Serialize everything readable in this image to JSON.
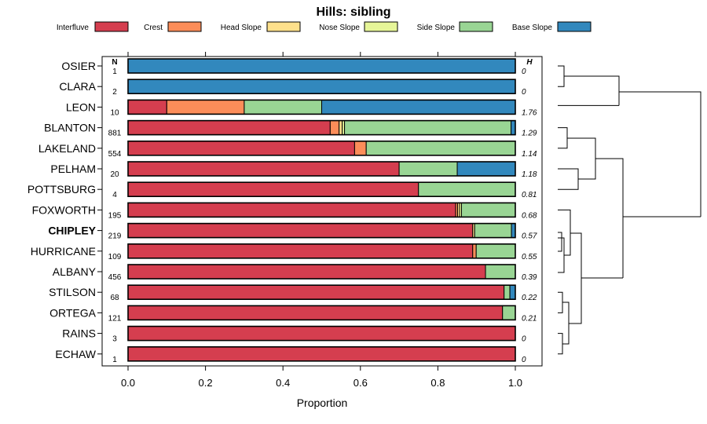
{
  "chart_data": {
    "type": "bar",
    "orientation": "horizontal",
    "stacked": true,
    "title": "Hills: sibling",
    "xlabel": "Proportion",
    "ylabel": "",
    "xlim": [
      0,
      1
    ],
    "xticks": [
      "0.0",
      "0.2",
      "0.4",
      "0.6",
      "0.8",
      "1.0"
    ],
    "xtick_values": [
      0,
      0.2,
      0.4,
      0.6,
      0.8,
      1.0
    ],
    "n_header": "N",
    "h_header": "H",
    "legend_position": "top",
    "series": [
      {
        "name": "Interfluve",
        "color": "#d53e4f"
      },
      {
        "name": "Crest",
        "color": "#fc8d59"
      },
      {
        "name": "Head Slope",
        "color": "#fee08b"
      },
      {
        "name": "Nose Slope",
        "color": "#e6f598"
      },
      {
        "name": "Side Slope",
        "color": "#99d594"
      },
      {
        "name": "Base Slope",
        "color": "#3288bd"
      }
    ],
    "highlight": "CHIPLEY",
    "categories": [
      "OSIER",
      "CLARA",
      "LEON",
      "BLANTON",
      "LAKELAND",
      "PELHAM",
      "POTTSBURG",
      "FOXWORTH",
      "CHIPLEY",
      "HURRICANE",
      "ALBANY",
      "STILSON",
      "ORTEGA",
      "RAINS",
      "ECHAW"
    ],
    "rows": [
      {
        "name": "OSIER",
        "n": "1",
        "h": "0",
        "values": [
          0,
          0,
          0,
          0,
          0,
          1
        ]
      },
      {
        "name": "CLARA",
        "n": "2",
        "h": "0",
        "values": [
          0,
          0,
          0,
          0,
          0,
          1
        ]
      },
      {
        "name": "LEON",
        "n": "10",
        "h": "1.76",
        "values": [
          0.1,
          0.2,
          0,
          0,
          0.2,
          0.5
        ]
      },
      {
        "name": "BLANTON",
        "n": "881",
        "h": "1.29",
        "values": [
          0.522,
          0.023,
          0.008,
          0.006,
          0.43,
          0.011
        ]
      },
      {
        "name": "LAKELAND",
        "n": "554",
        "h": "1.14",
        "values": [
          0.585,
          0.03,
          0,
          0,
          0.385,
          0
        ]
      },
      {
        "name": "PELHAM",
        "n": "20",
        "h": "1.18",
        "values": [
          0.7,
          0,
          0,
          0,
          0.15,
          0.15
        ]
      },
      {
        "name": "POTTSBURG",
        "n": "4",
        "h": "0.81",
        "values": [
          0.75,
          0,
          0,
          0,
          0.25,
          0
        ]
      },
      {
        "name": "FOXWORTH",
        "n": "195",
        "h": "0.68",
        "values": [
          0.846,
          0.005,
          0.005,
          0.005,
          0.139,
          0
        ]
      },
      {
        "name": "CHIPLEY",
        "n": "219",
        "h": "0.57",
        "values": [
          0.89,
          0,
          0.005,
          0,
          0.095,
          0.01
        ]
      },
      {
        "name": "HURRICANE",
        "n": "109",
        "h": "0.55",
        "values": [
          0.89,
          0.009,
          0,
          0,
          0.101,
          0
        ]
      },
      {
        "name": "ALBANY",
        "n": "456",
        "h": "0.39",
        "values": [
          0.923,
          0,
          0,
          0,
          0.077,
          0
        ]
      },
      {
        "name": "STILSON",
        "n": "68",
        "h": "0.22",
        "values": [
          0.971,
          0,
          0,
          0,
          0.015,
          0.014
        ]
      },
      {
        "name": "ORTEGA",
        "n": "121",
        "h": "0.21",
        "values": [
          0.967,
          0,
          0,
          0,
          0.033,
          0
        ]
      },
      {
        "name": "RAINS",
        "n": "3",
        "h": "0",
        "values": [
          1,
          0,
          0,
          0,
          0,
          0
        ]
      },
      {
        "name": "ECHAW",
        "n": "1",
        "h": "0",
        "values": [
          1,
          0,
          0,
          0,
          0,
          0
        ]
      }
    ],
    "dendrogram": {
      "groups": [
        [
          "OSIER",
          "CLARA"
        ],
        [
          "BLANTON",
          "LAKELAND"
        ],
        [
          "PELHAM",
          "POTTSBURG"
        ],
        [
          "FOXWORTH",
          "CHIPLEY",
          "HURRICANE",
          "ALBANY"
        ],
        [
          "STILSON",
          "ORTEGA",
          "RAINS",
          "ECHAW"
        ]
      ]
    }
  }
}
